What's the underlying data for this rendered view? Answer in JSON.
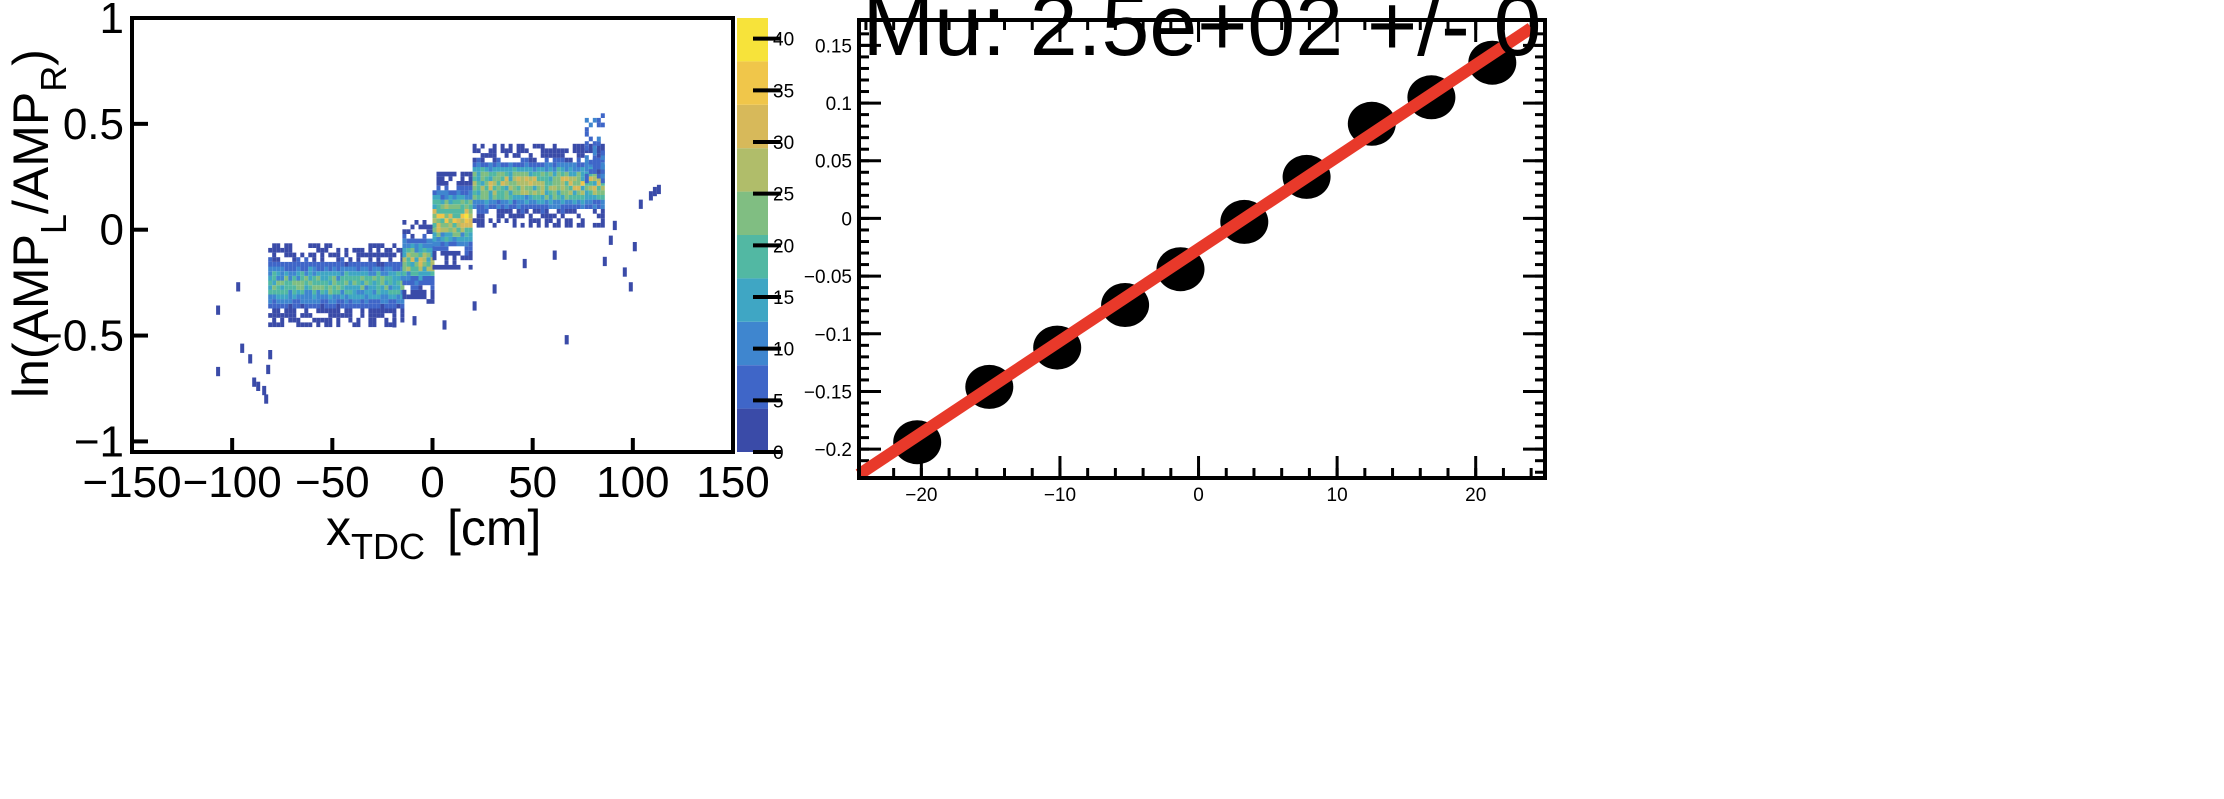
{
  "chart_data": [
    {
      "type": "heatmap",
      "title": "",
      "xlabel_main": "x",
      "xlabel_sub": "TDC",
      "xlabel_unit": "[cm]",
      "ylabel_parts": [
        "ln(AMP",
        "L",
        "/AMP",
        "R",
        ")"
      ],
      "xlim": [
        -150,
        150
      ],
      "ylim": [
        -1.05,
        1.0
      ],
      "xticks": [
        -150,
        -100,
        -50,
        0,
        50,
        100,
        150
      ],
      "xtick_labels": [
        "−150",
        "−100",
        "−50",
        "0",
        "50",
        "100",
        "150"
      ],
      "yticks": [
        -1,
        -0.5,
        0,
        0.5,
        1
      ],
      "ytick_labels": [
        "−1",
        "−0.5",
        "0",
        "0.5",
        "1"
      ],
      "colorbar": {
        "range": [
          0,
          42
        ],
        "ticks": [
          0,
          5,
          10,
          15,
          20,
          25,
          30,
          35,
          40
        ],
        "tick_labels": [
          "0",
          "5",
          "10",
          "15",
          "20",
          "25",
          "30",
          "35",
          "40"
        ],
        "colors": [
          "#3a4ba8",
          "#3f66c8",
          "#3f86cf",
          "#3fa6c4",
          "#52b8a3",
          "#80be82",
          "#b0bd6a",
          "#d7b95a",
          "#f0c64a",
          "#f7e33a"
        ]
      },
      "bands": [
        {
          "x0": -82,
          "x1": -15,
          "yc": -0.27,
          "hw": 0.1,
          "vmax": 22
        },
        {
          "x0": -15,
          "x1": 0,
          "yc": -0.16,
          "hw": 0.1,
          "vmax": 28
        },
        {
          "x0": 0,
          "x1": 20,
          "yc": 0.04,
          "hw": 0.12,
          "vmax": 34
        },
        {
          "x0": 20,
          "x1": 85,
          "yc": 0.2,
          "hw": 0.1,
          "vmax": 30
        }
      ],
      "outliers": [
        [
          -108,
          -0.38
        ],
        [
          -108,
          -0.67
        ],
        [
          -98,
          -0.27
        ],
        [
          -96,
          -0.56
        ],
        [
          -92,
          -0.61
        ],
        [
          -90,
          -0.72
        ],
        [
          -88,
          -0.74
        ],
        [
          -85,
          -0.76
        ],
        [
          -84,
          -0.8
        ],
        [
          -83,
          -0.66
        ],
        [
          -82,
          -0.59
        ],
        [
          -20,
          -0.44
        ],
        [
          -10,
          -0.43
        ],
        [
          5,
          -0.45
        ],
        [
          20,
          -0.36
        ],
        [
          30,
          -0.28
        ],
        [
          35,
          -0.12
        ],
        [
          45,
          -0.16
        ],
        [
          60,
          -0.12
        ],
        [
          66,
          -0.52
        ],
        [
          85,
          -0.15
        ],
        [
          88,
          -0.05
        ],
        [
          90,
          0.02
        ],
        [
          95,
          -0.2
        ],
        [
          98,
          -0.27
        ],
        [
          100,
          -0.08
        ],
        [
          103,
          0.12
        ],
        [
          108,
          0.16
        ],
        [
          110,
          0.18
        ],
        [
          112,
          0.19
        ]
      ]
    },
    {
      "type": "scatter",
      "title": "Mu: 2.5e+02 +/- 0",
      "xlim": [
        -24.5,
        25
      ],
      "ylim": [
        -0.225,
        0.172
      ],
      "xticks": [
        -20,
        -10,
        0,
        10,
        20
      ],
      "xtick_labels": [
        "−20",
        "−10",
        "0",
        "10",
        "20"
      ],
      "yticks": [
        -0.2,
        -0.15,
        -0.1,
        -0.05,
        0,
        0.05,
        0.1,
        0.15
      ],
      "ytick_labels": [
        "−0.2",
        "−0.15",
        "−0.1",
        "−0.05",
        "0",
        "0.05",
        "0.1",
        "0.15"
      ],
      "points": [
        {
          "x": -20.3,
          "y": -0.194
        },
        {
          "x": -15.1,
          "y": -0.146
        },
        {
          "x": -10.2,
          "y": -0.112
        },
        {
          "x": -5.3,
          "y": -0.075
        },
        {
          "x": -1.3,
          "y": -0.044
        },
        {
          "x": 3.3,
          "y": -0.003
        },
        {
          "x": 7.8,
          "y": 0.036
        },
        {
          "x": 12.5,
          "y": 0.082
        },
        {
          "x": 16.8,
          "y": 0.105
        },
        {
          "x": 21.2,
          "y": 0.135
        }
      ],
      "fit_line": {
        "x": [
          -24.5,
          24.0
        ],
        "y": [
          -0.222,
          0.165
        ],
        "color": "#e8392a"
      },
      "marker_color": "#000000"
    }
  ]
}
